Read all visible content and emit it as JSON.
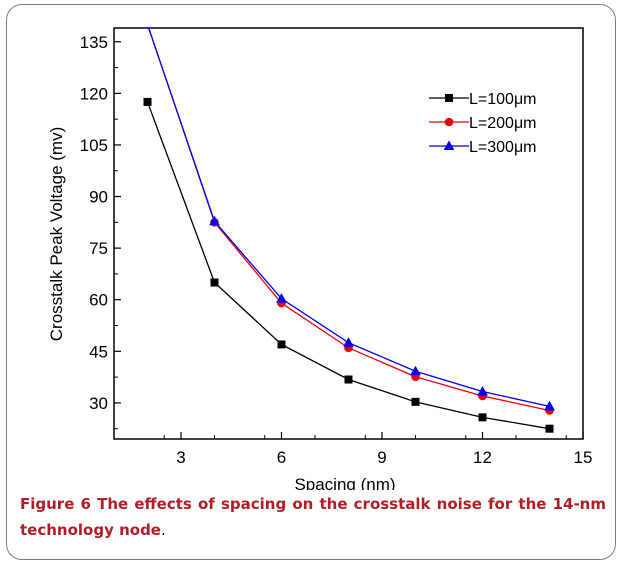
{
  "chart_data": {
    "type": "line",
    "xlabel": "Spacing (nm)",
    "ylabel": "Crosstalk Peak Voltage (mv)",
    "xlim": [
      1,
      15
    ],
    "ylim": [
      19.5,
      139
    ],
    "x_ticks": [
      "3",
      "6",
      "9",
      "12",
      "15"
    ],
    "y_ticks": [
      "30",
      "45",
      "60",
      "75",
      "90",
      "105",
      "120",
      "135"
    ],
    "x": [
      2,
      4,
      6,
      8,
      10,
      12,
      14
    ],
    "series": [
      {
        "name": "L=100μm",
        "color": "#000000",
        "marker": "square",
        "values": [
          117.5,
          65.0,
          47.0,
          36.8,
          30.3,
          25.8,
          22.5
        ]
      },
      {
        "name": "L=200μm",
        "color": "#e8000b",
        "marker": "circle",
        "values": [
          140.0,
          82.5,
          59.0,
          46.0,
          37.6,
          32.0,
          27.8
        ]
      },
      {
        "name": "L=300μm",
        "color": "#0000ee",
        "marker": "triangle",
        "values": [
          140.0,
          82.8,
          60.3,
          47.5,
          39.2,
          33.3,
          29.0
        ]
      }
    ],
    "legend_position": "top-right"
  },
  "caption": {
    "label": "Figure 6",
    "text_bold_part": " The effects of spacing on the crosstalk noise for the 14-nm technology node",
    "end": "."
  }
}
